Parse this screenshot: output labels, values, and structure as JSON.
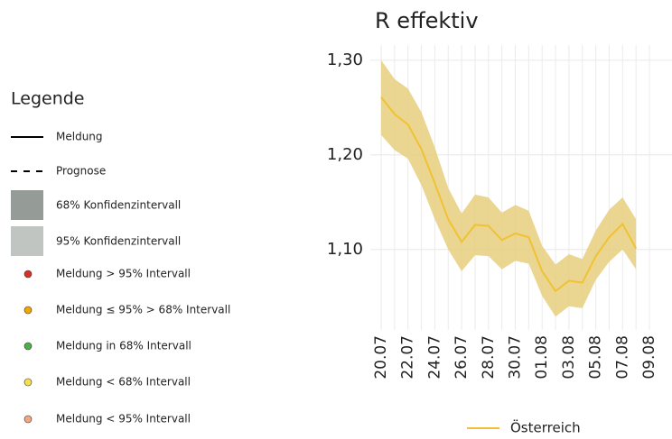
{
  "legend_panel": {
    "title": "Legende",
    "items": [
      "Meldung",
      "Prognose",
      "68% Konfidenzintervall",
      "95% Konfidenzintervall",
      "Meldung > 95% Intervall",
      "Meldung ≤ 95% > 68% Intervall",
      "Meldung in 68% Intervall",
      "Meldung < 68% Intervall",
      "Meldung < 95% Intervall"
    ]
  },
  "chart_data": {
    "type": "line",
    "title": "R effektiv",
    "categories": [
      "20.07",
      null,
      "22.07",
      null,
      "24.07",
      null,
      "26.07",
      null,
      "28.07",
      null,
      "30.07",
      null,
      "01.08",
      null,
      "03.08",
      null,
      "05.08",
      null,
      "07.08",
      null,
      "09.08"
    ],
    "series": [
      {
        "name": "Österreich",
        "color": "#f0c233",
        "band_color": "#e6cf7e",
        "values": [
          1.261,
          1.243,
          1.232,
          1.206,
          1.17,
          1.132,
          1.108,
          1.126,
          1.125,
          1.11,
          1.117,
          1.113,
          1.077,
          1.056,
          1.067,
          1.065,
          1.093,
          1.113,
          1.127,
          1.101,
          null
        ],
        "upper": [
          1.3,
          1.28,
          1.27,
          1.245,
          1.208,
          1.165,
          1.138,
          1.158,
          1.155,
          1.139,
          1.147,
          1.141,
          1.104,
          1.084,
          1.095,
          1.09,
          1.12,
          1.142,
          1.155,
          1.132,
          null
        ],
        "lower": [
          1.221,
          1.205,
          1.196,
          1.168,
          1.132,
          1.1,
          1.077,
          1.094,
          1.093,
          1.079,
          1.088,
          1.085,
          1.051,
          1.029,
          1.04,
          1.038,
          1.068,
          1.087,
          1.1,
          1.079,
          null
        ]
      }
    ],
    "ylim": [
      1.015,
      1.316
    ],
    "yticks": [
      {
        "value": 1.1,
        "label": "1,10"
      },
      {
        "value": 1.2,
        "label": "1,20"
      },
      {
        "value": 1.3,
        "label": "1,30"
      }
    ],
    "grid": true
  }
}
